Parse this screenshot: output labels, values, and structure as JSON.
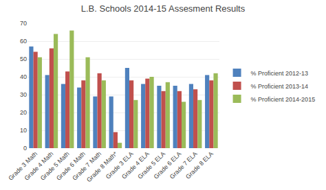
{
  "chart_data": {
    "type": "bar",
    "title": "L.B. Schools 2014-15 Assesment Results",
    "categories": [
      "Grade 3 Math",
      "Grade 4 Math",
      "Grade 5 Math",
      "Grade 6 Math",
      "Grade 7 Math",
      "Grade 8 Math*",
      "Grade 3 ELA",
      "Grade 4 ELA",
      "Grade 5 ELA",
      "Grade 6 ELA",
      "Grade 7 ELA",
      "Grade 8 ELA"
    ],
    "series": [
      {
        "name": "% Proficient 2012-13",
        "color": "#4F81BD",
        "values": [
          57,
          41,
          36,
          34,
          29,
          29,
          45,
          36,
          35,
          35,
          36,
          41
        ]
      },
      {
        "name": "% Proficient 2013-14",
        "color": "#C0504D",
        "values": [
          54,
          56,
          43,
          38,
          42,
          9,
          38,
          39,
          32,
          32,
          33,
          38
        ]
      },
      {
        "name": "% Proficient 2014-2015",
        "color": "#9BBB59",
        "values": [
          51,
          64,
          66,
          51,
          38,
          3,
          27,
          40,
          37,
          26,
          27,
          42
        ]
      }
    ],
    "ylim": [
      0,
      70
    ],
    "yticks": [
      0,
      10,
      20,
      30,
      40,
      50,
      60,
      70
    ],
    "grid": true,
    "legend": "right"
  }
}
